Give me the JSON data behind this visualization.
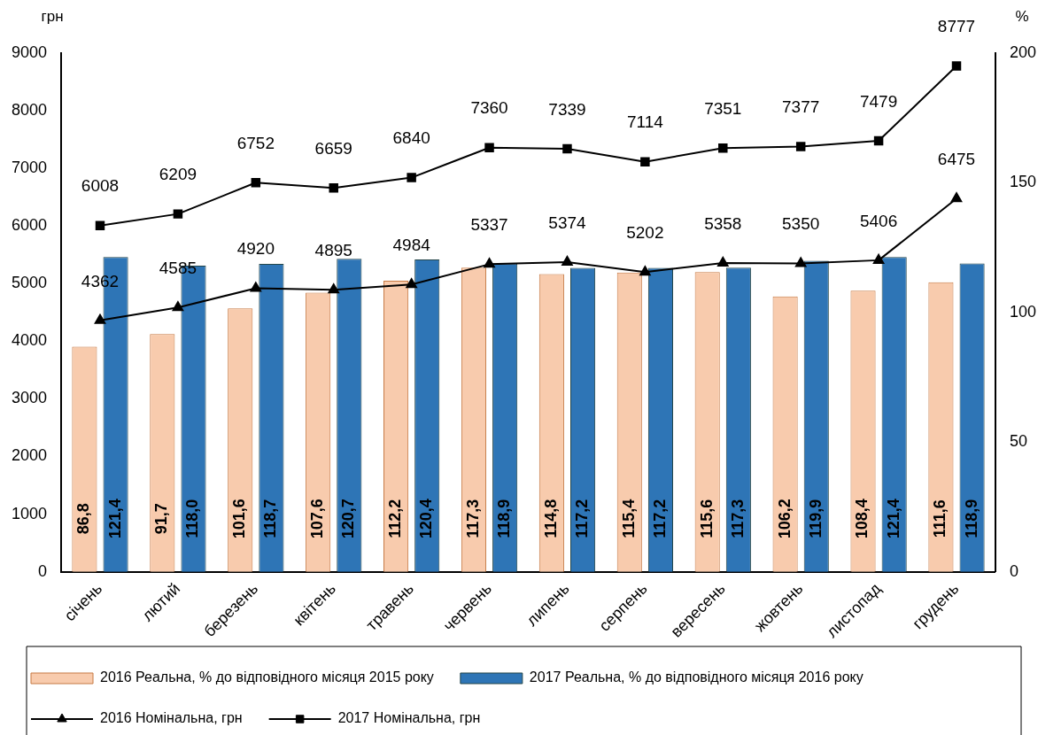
{
  "chart_data": {
    "type": "bar",
    "ylabel": "грн",
    "y2label": "%",
    "categories": [
      "січень",
      "лютий",
      "березень",
      "квітень",
      "травень",
      "червень",
      "липень",
      "серпень",
      "вересень",
      "жовтень",
      "листопад",
      "грудень"
    ],
    "series": [
      {
        "name": "2016 Реальна, % до відповідного місяця 2015 року",
        "axis": "y2",
        "color": "#f8cbad",
        "values": [
          86.8,
          91.7,
          101.6,
          107.6,
          112.2,
          117.3,
          114.8,
          115.4,
          115.6,
          106.2,
          108.4,
          111.6
        ],
        "value_labels": [
          "86,8",
          "91,7",
          "101,6",
          "107,6",
          "112,2",
          "117,3",
          "114,8",
          "115,4",
          "115,6",
          "106,2",
          "108,4",
          "111,6"
        ]
      },
      {
        "name": "2017 Реальна, % до відповідного місяця 2016 року",
        "axis": "y2",
        "color": "#2e75b6",
        "values": [
          121.4,
          118.0,
          118.7,
          120.7,
          120.4,
          118.9,
          117.2,
          117.2,
          117.3,
          119.9,
          121.4,
          118.9
        ],
        "value_labels": [
          "121,4",
          "118,0",
          "118,7",
          "120,7",
          "120,4",
          "118,9",
          "117,2",
          "117,2",
          "117,3",
          "119,9",
          "121,4",
          "118,9"
        ]
      },
      {
        "name": "2016 Номінальна, грн",
        "type": "line",
        "axis": "y",
        "color": "#000000",
        "marker": "triangle",
        "values": [
          4362,
          4585,
          4920,
          4895,
          4984,
          5337,
          5374,
          5202,
          5358,
          5350,
          5406,
          6475
        ],
        "value_labels": [
          "4362",
          "4585",
          "4920",
          "4895",
          "4984",
          "5337",
          "5374",
          "5202",
          "5358",
          "5350",
          "5406",
          "6475"
        ]
      },
      {
        "name": "2017 Номінальна, грн",
        "type": "line",
        "axis": "y",
        "color": "#000000",
        "marker": "square",
        "values": [
          6008,
          6209,
          6752,
          6659,
          6840,
          7360,
          7339,
          7114,
          7351,
          7377,
          7479,
          8777
        ],
        "value_labels": [
          "6008",
          "6209",
          "6752",
          "6659",
          "6840",
          "7360",
          "7339",
          "7114",
          "7351",
          "7377",
          "7479",
          "8777"
        ]
      }
    ],
    "ylim": [
      0,
      9000
    ],
    "yticks": [
      0,
      1000,
      2000,
      3000,
      4000,
      5000,
      6000,
      7000,
      8000,
      9000
    ],
    "y2lim": [
      0,
      200
    ],
    "y2ticks": [
      0,
      50,
      100,
      150,
      200
    ],
    "grid": false,
    "legend": "bottom",
    "line_style": "solid"
  }
}
